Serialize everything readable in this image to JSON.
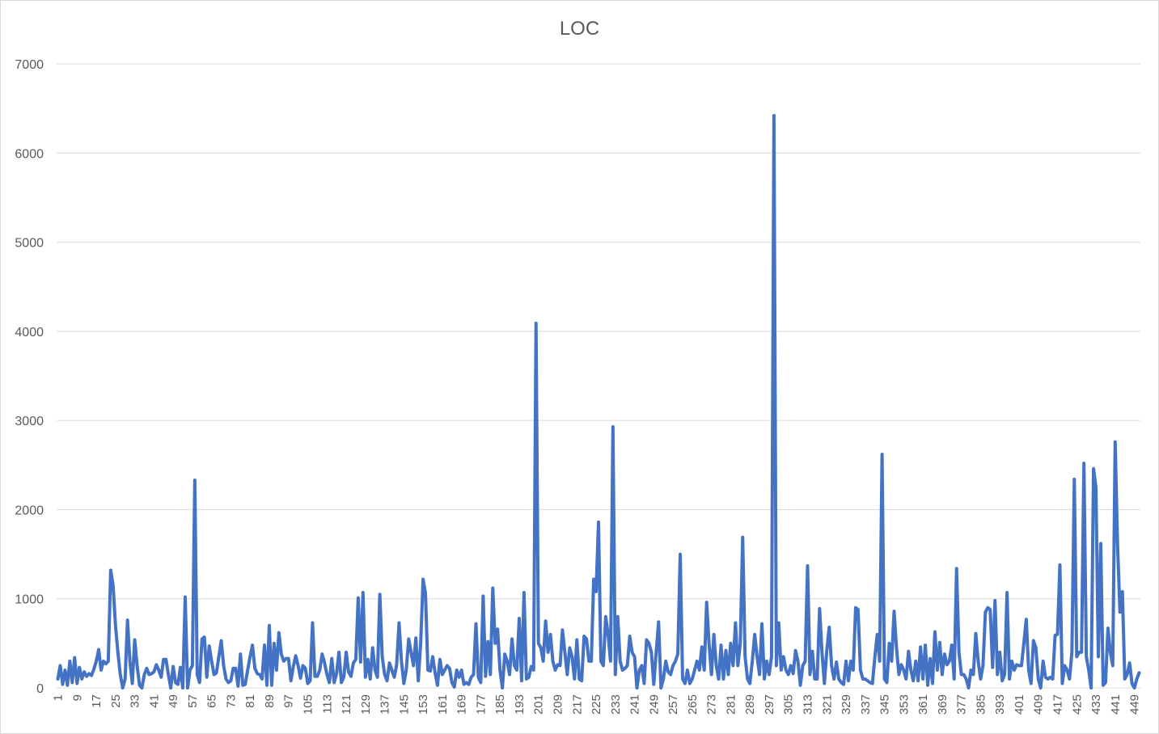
{
  "chart_data": {
    "type": "line",
    "title": "LOC",
    "xlabel": "",
    "ylabel": "",
    "ylim": [
      0,
      7000
    ],
    "yticks": [
      0,
      1000,
      2000,
      3000,
      4000,
      5000,
      6000,
      7000
    ],
    "x_tick_step": 8,
    "grid": true,
    "legend": "none",
    "line_color": "#4472C4",
    "grid_color": "#d9d9d9",
    "series": [
      {
        "values": [
          100,
          250,
          40,
          200,
          30,
          300,
          60,
          340,
          50,
          230,
          100,
          180,
          130,
          160,
          140,
          210,
          300,
          430,
          200,
          300,
          270,
          300,
          1320,
          1150,
          700,
          400,
          150,
          0,
          100,
          760,
          300,
          50,
          540,
          250,
          30,
          0,
          150,
          220,
          150,
          160,
          180,
          260,
          200,
          120,
          320,
          320,
          150,
          0,
          240,
          60,
          40,
          230,
          0,
          1020,
          0,
          200,
          250,
          2330,
          150,
          60,
          550,
          570,
          120,
          470,
          300,
          150,
          170,
          350,
          530,
          250,
          100,
          60,
          80,
          220,
          220,
          20,
          380,
          30,
          40,
          200,
          350,
          480,
          220,
          160,
          150,
          100,
          480,
          30,
          700,
          30,
          500,
          200,
          620,
          380,
          300,
          330,
          330,
          80,
          240,
          360,
          250,
          110,
          250,
          220,
          50,
          80,
          730,
          130,
          130,
          200,
          380,
          280,
          150,
          60,
          330,
          60,
          160,
          400,
          60,
          120,
          400,
          180,
          130,
          280,
          320,
          1010,
          290,
          1070,
          120,
          320,
          100,
          450,
          200,
          120,
          1050,
          350,
          150,
          80,
          280,
          200,
          120,
          260,
          730,
          300,
          50,
          200,
          550,
          400,
          250,
          560,
          80,
          500,
          1220,
          1060,
          200,
          190,
          350,
          170,
          30,
          320,
          150,
          200,
          250,
          220,
          60,
          10,
          200,
          120,
          200,
          40,
          60,
          40,
          120,
          150,
          720,
          120,
          60,
          1030,
          130,
          520,
          150,
          1120,
          500,
          660,
          200,
          0,
          380,
          300,
          150,
          550,
          250,
          200,
          780,
          80,
          1070,
          100,
          120,
          240,
          200,
          4090,
          500,
          450,
          300,
          750,
          400,
          600,
          300,
          200,
          260,
          250,
          650,
          400,
          150,
          450,
          350,
          100,
          540,
          100,
          80,
          580,
          550,
          300,
          300,
          1220,
          1080,
          1860,
          300,
          250,
          800,
          600,
          300,
          2930,
          150,
          800,
          300,
          200,
          220,
          250,
          580,
          400,
          350,
          0,
          200,
          250,
          50,
          540,
          500,
          400,
          40,
          400,
          740,
          0,
          100,
          300,
          180,
          150,
          250,
          300,
          380,
          1500,
          100,
          50,
          200,
          50,
          100,
          200,
          300,
          200,
          460,
          200,
          960,
          500,
          150,
          600,
          250,
          100,
          480,
          100,
          420,
          150,
          500,
          250,
          730,
          250,
          500,
          1690,
          350,
          100,
          50,
          300,
          600,
          350,
          150,
          720,
          100,
          300,
          150,
          350,
          6420,
          250,
          730,
          200,
          350,
          200,
          150,
          250,
          160,
          420,
          300,
          30,
          250,
          300,
          1370,
          150,
          410,
          100,
          100,
          890,
          400,
          50,
          420,
          680,
          250,
          100,
          290,
          100,
          60,
          40,
          300,
          80,
          300,
          200,
          900,
          880,
          200,
          100,
          100,
          80,
          60,
          50,
          350,
          600,
          300,
          2620,
          100,
          60,
          500,
          300,
          860,
          450,
          150,
          260,
          200,
          100,
          410,
          200,
          80,
          300,
          80,
          460,
          100,
          480,
          30,
          330,
          50,
          630,
          200,
          510,
          150,
          380,
          260,
          300,
          480,
          100,
          1340,
          400,
          150,
          150,
          100,
          0,
          200,
          150,
          610,
          300,
          100,
          250,
          850,
          900,
          880,
          230,
          980,
          150,
          400,
          80,
          150,
          1070,
          100,
          300,
          200,
          260,
          250,
          250,
          500,
          770,
          200,
          50,
          530,
          450,
          100,
          0,
          300,
          120,
          100,
          120,
          100,
          590,
          600,
          1380,
          50,
          250,
          200,
          100,
          400,
          2340,
          350,
          400,
          400,
          2520,
          350,
          200,
          0,
          2460,
          2250,
          350,
          1620,
          30,
          60,
          670,
          400,
          250,
          2760,
          1600,
          850,
          1080,
          100,
          150,
          280,
          50,
          0,
          100,
          170
        ]
      }
    ]
  }
}
